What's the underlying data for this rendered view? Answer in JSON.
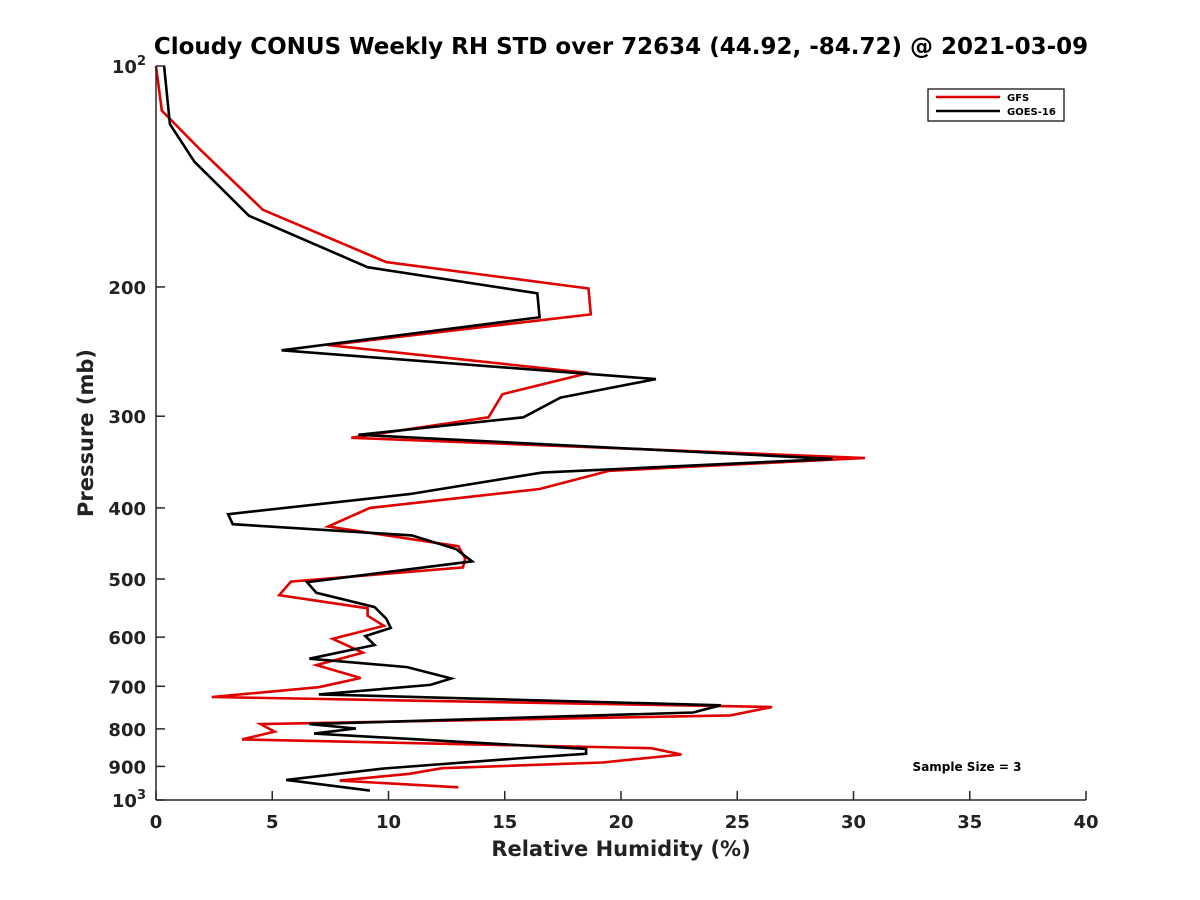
{
  "chart_data": {
    "type": "line",
    "title": "Cloudy CONUS Weekly RH STD over 72634 (44.92, -84.72) @ 2021-03-09",
    "xlabel": "Relative Humidity (%)",
    "ylabel": "Pressure (mb)",
    "xlim": [
      0,
      40
    ],
    "ylim": [
      100,
      1000
    ],
    "y_scale": "log",
    "y_reversed": true,
    "x_ticks": [
      "0",
      "5",
      "10",
      "15",
      "20",
      "25",
      "30",
      "35",
      "40"
    ],
    "y_ticks": [
      {
        "value": 100,
        "base": "10",
        "exp": "2"
      },
      {
        "value": 200,
        "label": "200"
      },
      {
        "value": 300,
        "label": "300"
      },
      {
        "value": 400,
        "label": "400"
      },
      {
        "value": 500,
        "label": "500"
      },
      {
        "value": 600,
        "label": "600"
      },
      {
        "value": 700,
        "label": "700"
      },
      {
        "value": 800,
        "label": "800"
      },
      {
        "value": 900,
        "label": "900"
      },
      {
        "value": 1000,
        "base": "10",
        "exp": "3"
      }
    ],
    "grid": false,
    "legend_position": "top-right",
    "annotation": "Sample Size = 3",
    "series": [
      {
        "name": "GFS",
        "color": "#e00000",
        "points": [
          [
            0.0,
            100
          ],
          [
            0.25,
            115
          ],
          [
            1.9,
            130
          ],
          [
            4.6,
            157
          ],
          [
            9.9,
            185
          ],
          [
            18.6,
            201
          ],
          [
            18.7,
            218
          ],
          [
            7.4,
            240
          ],
          [
            18.6,
            262
          ],
          [
            14.9,
            280
          ],
          [
            14.3,
            301
          ],
          [
            8.4,
            321
          ],
          [
            30.5,
            342
          ],
          [
            19.5,
            356
          ],
          [
            16.5,
            377
          ],
          [
            9.2,
            400
          ],
          [
            7.4,
            424
          ],
          [
            13.0,
            451
          ],
          [
            13.3,
            469
          ],
          [
            13.2,
            482
          ],
          [
            5.8,
            504
          ],
          [
            5.3,
            526
          ],
          [
            9.1,
            548
          ],
          [
            9.1,
            561
          ],
          [
            9.8,
            579
          ],
          [
            7.6,
            603
          ],
          [
            8.9,
            630
          ],
          [
            6.9,
            655
          ],
          [
            8.8,
            682
          ],
          [
            7.0,
            702
          ],
          [
            2.4,
            724
          ],
          [
            26.5,
            747
          ],
          [
            24.7,
            767
          ],
          [
            4.5,
            788
          ],
          [
            5.1,
            807
          ],
          [
            3.7,
            827
          ],
          [
            21.3,
            850
          ],
          [
            22.6,
            867
          ],
          [
            19.2,
            889
          ],
          [
            12.3,
            905
          ],
          [
            10.9,
            921
          ],
          [
            7.9,
            941
          ],
          [
            13.0,
            961
          ]
        ]
      },
      {
        "name": "GOES-16",
        "color": "#000000",
        "points": [
          [
            0.35,
            100
          ],
          [
            0.6,
            120
          ],
          [
            1.65,
            135
          ],
          [
            4.0,
            160
          ],
          [
            9.1,
            188
          ],
          [
            16.4,
            204
          ],
          [
            16.5,
            220
          ],
          [
            5.4,
            244
          ],
          [
            21.5,
            267
          ],
          [
            17.4,
            283
          ],
          [
            15.8,
            301
          ],
          [
            8.7,
            318
          ],
          [
            29.1,
            343
          ],
          [
            16.6,
            358
          ],
          [
            10.9,
            383
          ],
          [
            3.1,
            408
          ],
          [
            3.3,
            421
          ],
          [
            11.0,
            436
          ],
          [
            12.9,
            455
          ],
          [
            13.6,
            473
          ],
          [
            6.5,
            505
          ],
          [
            6.9,
            522
          ],
          [
            9.4,
            546
          ],
          [
            9.9,
            566
          ],
          [
            10.1,
            583
          ],
          [
            9.0,
            598
          ],
          [
            9.4,
            615
          ],
          [
            6.6,
            642
          ],
          [
            10.8,
            659
          ],
          [
            12.7,
            683
          ],
          [
            11.8,
            697
          ],
          [
            7.0,
            718
          ],
          [
            24.3,
            743
          ],
          [
            23.1,
            760
          ],
          [
            6.6,
            788
          ],
          [
            8.6,
            799
          ],
          [
            6.8,
            812
          ],
          [
            18.5,
            852
          ],
          [
            18.5,
            865
          ],
          [
            15.5,
            878
          ],
          [
            9.8,
            906
          ],
          [
            5.6,
            939
          ],
          [
            9.2,
            971
          ]
        ]
      }
    ]
  }
}
